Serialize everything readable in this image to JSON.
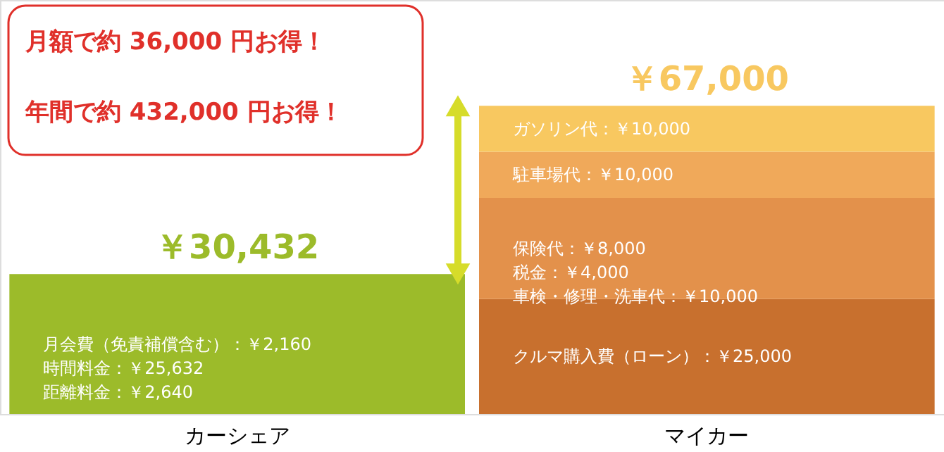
{
  "chart_data": {
    "type": "bar",
    "stacked": true,
    "categories": [
      "カーシェア",
      "マイカー"
    ],
    "ylim": [
      0,
      90000
    ],
    "tick_labels": "x",
    "series": [
      {
        "color": "#9cbb2a",
        "values": [
          30432,
          null
        ],
        "value_labels": [
          "月会費（免責補償含む）：￥2,160\n時間料金：￥25,632\n距離料金：￥2,640",
          null
        ]
      },
      {
        "color": "#c8702e",
        "values": [
          null,
          25000
        ],
        "value_labels": [
          null,
          "クルマ購入費（ローン）：￥25,000"
        ]
      },
      {
        "color": "#e3914b",
        "values": [
          null,
          22000
        ],
        "value_labels": [
          null,
          "保険代：￥8,000\n税金：￥4,000\n車検・修理・洗車代：￥10,000"
        ]
      },
      {
        "color": "#f0a95a",
        "values": [
          null,
          10000
        ],
        "value_labels": [
          null,
          "駐車場代：￥10,000"
        ]
      },
      {
        "color": "#f8c860",
        "values": [
          null,
          10000
        ],
        "value_labels": [
          null,
          "ガソリン代：￥10,000"
        ]
      }
    ],
    "totals": [
      "￥30,432",
      "￥67,000"
    ],
    "annotations": [
      "月額で約 36,000 円お得！",
      "年間で約 432,000 円お得！"
    ]
  }
}
